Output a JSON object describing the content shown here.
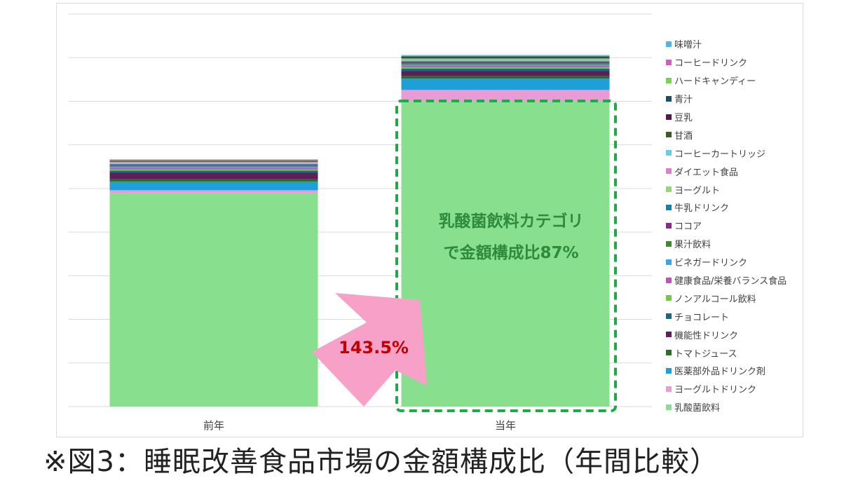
{
  "caption": "※図3：睡眠改善食品市場の金額構成比（年間比較）",
  "annotations": {
    "highlight_line1": "乳酸菌飲料カテゴリ",
    "highlight_line2": "で金額構成比87%",
    "growth_label": "143.5%"
  },
  "colors": {
    "highlight_text": "#2e8b3d",
    "highlight_border": "#1faa48",
    "arrow": "#f7a0c8",
    "growth_text": "#c00000",
    "gridline": "#d9d9d9"
  },
  "chart_data": {
    "type": "bar",
    "stacked": true,
    "categories": [
      "前年",
      "当年"
    ],
    "ylim": [
      0,
      9
    ],
    "grid": true,
    "legend_position": "right",
    "series": [
      {
        "name": "乳酸菌飲料",
        "color": "#88e08e",
        "values": [
          4.9,
          7.0
        ]
      },
      {
        "name": "ヨーグルトドリンク",
        "color": "#e89bd4",
        "values": [
          0.06,
          0.26
        ]
      },
      {
        "name": "医薬部外品ドリンク剤",
        "color": "#1f9fd8",
        "values": [
          0.2,
          0.26
        ]
      },
      {
        "name": "トマトジュース",
        "color": "#2a6e26",
        "values": [
          0.05,
          0.06
        ]
      },
      {
        "name": "機能性ドリンク",
        "color": "#5e1e5a",
        "values": [
          0.15,
          0.11
        ]
      },
      {
        "name": "チョコレート",
        "color": "#1e6680",
        "values": [
          0.05,
          0.06
        ]
      },
      {
        "name": "ノンアルコール飲料",
        "color": "#6ec94e",
        "values": [
          0.03,
          0.03
        ]
      },
      {
        "name": "健康食品/栄養バランス食品",
        "color": "#c84fb4",
        "values": [
          0.03,
          0.03
        ]
      },
      {
        "name": "ビネガードリンク",
        "color": "#3aa8df",
        "values": [
          0.03,
          0.03
        ]
      },
      {
        "name": "果汁飲料",
        "color": "#3e8a2c",
        "values": [
          0.02,
          0.03
        ]
      },
      {
        "name": "ココア",
        "color": "#8a2a84",
        "values": [
          0.02,
          0.03
        ]
      },
      {
        "name": "牛乳ドリンク",
        "color": "#1a7fa8",
        "values": [
          0.02,
          0.02
        ]
      },
      {
        "name": "ヨーグルト",
        "color": "#96d874",
        "values": [
          0.02,
          0.02
        ]
      },
      {
        "name": "ダイエット食品",
        "color": "#e07ec9",
        "values": [
          0.02,
          0.02
        ]
      },
      {
        "name": "コーヒーカートリッジ",
        "color": "#6fc8ea",
        "values": [
          0.01,
          0.02
        ]
      },
      {
        "name": "甘酒",
        "color": "#375d22",
        "values": [
          0.01,
          0.02
        ]
      },
      {
        "name": "豆乳",
        "color": "#4e1c48",
        "values": [
          0.01,
          0.02
        ]
      },
      {
        "name": "青汁",
        "color": "#16506a",
        "values": [
          0.01,
          0.01
        ]
      },
      {
        "name": "ハードキャンディー",
        "color": "#7ad15a",
        "values": [
          0.01,
          0.01
        ]
      },
      {
        "name": "コーヒードリンク",
        "color": "#d05ec0",
        "values": [
          0.01,
          0.01
        ]
      },
      {
        "name": "味噌汁",
        "color": "#4db6e6",
        "values": [
          0.01,
          0.01
        ]
      }
    ]
  }
}
